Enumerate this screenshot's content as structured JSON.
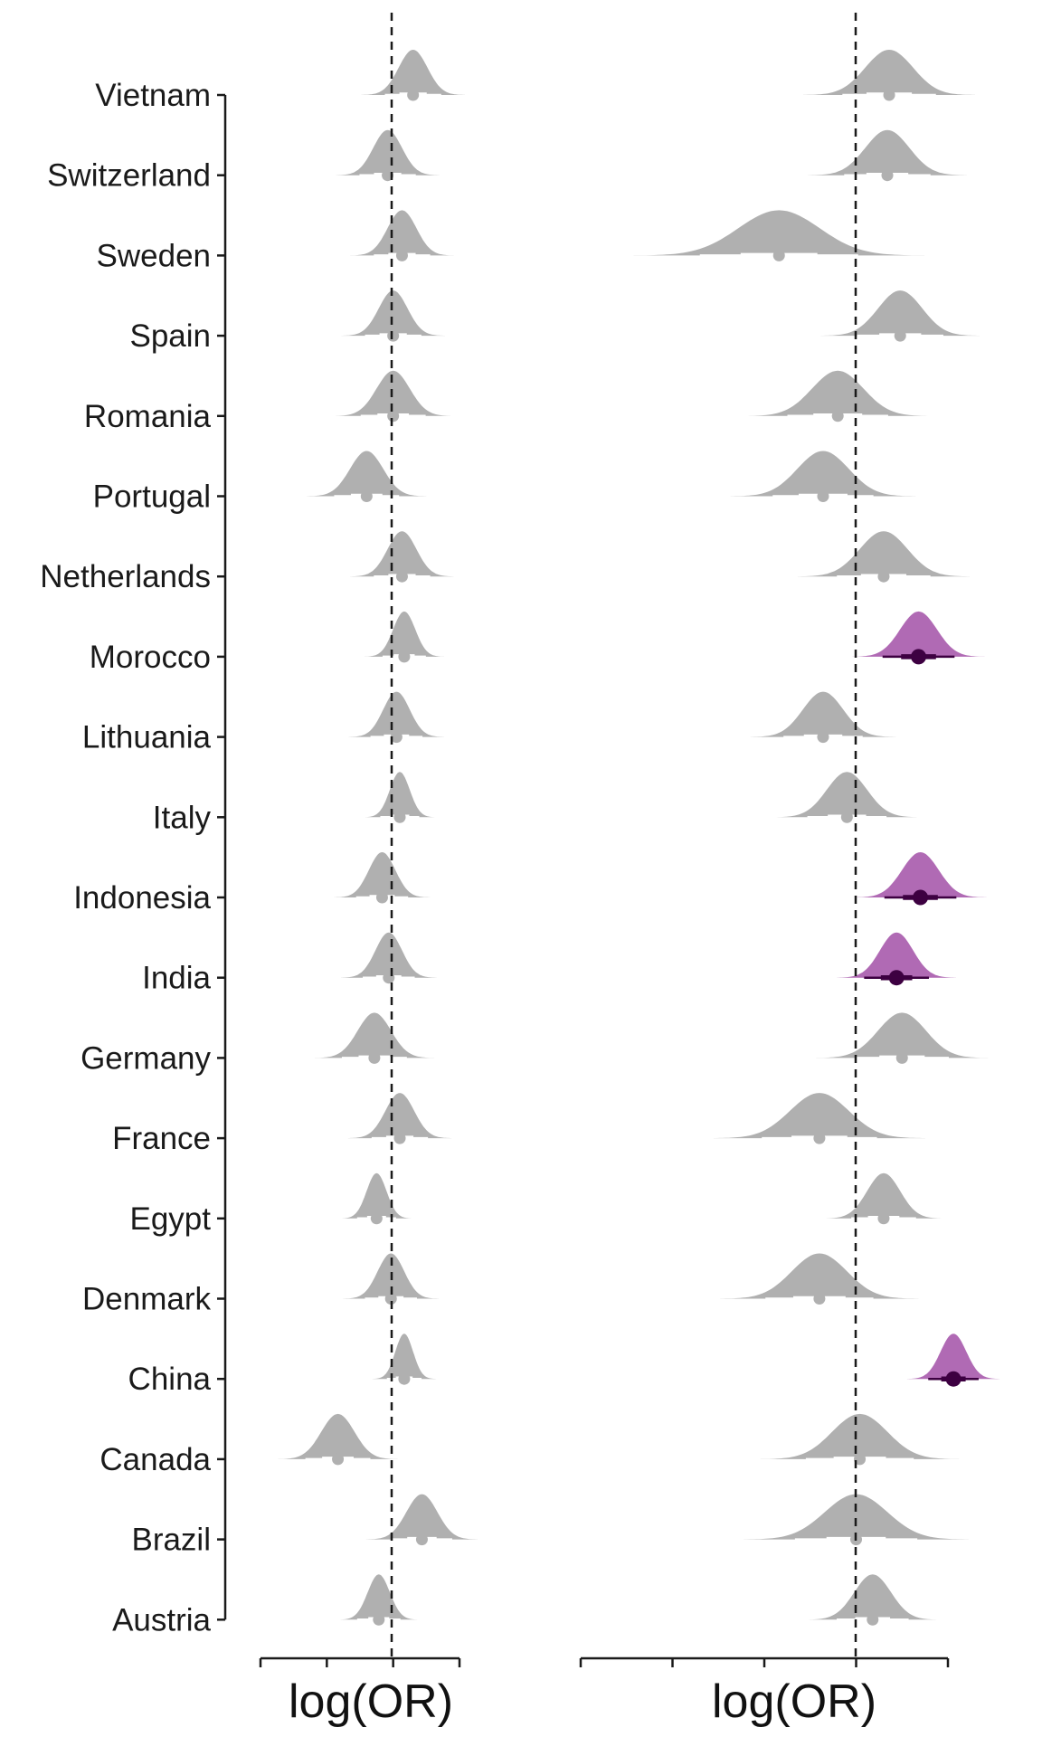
{
  "chart_data": {
    "type": "density-forest",
    "countries": [
      "Vietnam",
      "Switzerland",
      "Sweden",
      "Spain",
      "Romania",
      "Portugal",
      "Netherlands",
      "Morocco",
      "Lithuania",
      "Italy",
      "Indonesia",
      "India",
      "Germany",
      "France",
      "Egypt",
      "Denmark",
      "China",
      "Canada",
      "Brazil",
      "Austria"
    ],
    "panels": [
      {
        "name": "left",
        "xlabel": "log(OR)",
        "xlim": [
          -1.2,
          0.6
        ],
        "xticks": [
          -1.2,
          -0.6,
          0,
          0.6
        ],
        "reference_line": 0,
        "series": [
          {
            "country": "Vietnam",
            "mean": 0.18,
            "sd": 0.13,
            "highlight": false
          },
          {
            "country": "Switzerland",
            "mean": -0.05,
            "sd": 0.13,
            "highlight": false
          },
          {
            "country": "Sweden",
            "mean": 0.08,
            "sd": 0.13,
            "highlight": false
          },
          {
            "country": "Spain",
            "mean": 0.0,
            "sd": 0.13,
            "highlight": false
          },
          {
            "country": "Romania",
            "mean": 0.0,
            "sd": 0.15,
            "highlight": false
          },
          {
            "country": "Portugal",
            "mean": -0.24,
            "sd": 0.15,
            "highlight": false
          },
          {
            "country": "Netherlands",
            "mean": 0.08,
            "sd": 0.13,
            "highlight": false
          },
          {
            "country": "Morocco",
            "mean": 0.1,
            "sd": 0.1,
            "highlight": false
          },
          {
            "country": "Lithuania",
            "mean": 0.03,
            "sd": 0.12,
            "highlight": false
          },
          {
            "country": "Italy",
            "mean": 0.06,
            "sd": 0.09,
            "highlight": false
          },
          {
            "country": "Indonesia",
            "mean": -0.1,
            "sd": 0.12,
            "highlight": false
          },
          {
            "country": "India",
            "mean": -0.04,
            "sd": 0.12,
            "highlight": false
          },
          {
            "country": "Germany",
            "mean": -0.17,
            "sd": 0.15,
            "highlight": false
          },
          {
            "country": "France",
            "mean": 0.06,
            "sd": 0.13,
            "highlight": false
          },
          {
            "country": "Egypt",
            "mean": -0.15,
            "sd": 0.09,
            "highlight": false
          },
          {
            "country": "Denmark",
            "mean": -0.02,
            "sd": 0.12,
            "highlight": false
          },
          {
            "country": "China",
            "mean": 0.1,
            "sd": 0.08,
            "highlight": false
          },
          {
            "country": "Canada",
            "mean": -0.5,
            "sd": 0.15,
            "highlight": false
          },
          {
            "country": "Brazil",
            "mean": 0.26,
            "sd": 0.14,
            "highlight": false
          },
          {
            "country": "Austria",
            "mean": -0.13,
            "sd": 0.1,
            "highlight": false
          }
        ]
      },
      {
        "name": "right",
        "xlabel": "log(OR)",
        "xlim": [
          -1.5,
          0.5
        ],
        "xticks": [
          -1.5,
          -1.0,
          -0.5,
          0.0,
          0.5
        ],
        "reference_line": 0,
        "series": [
          {
            "country": "Vietnam",
            "mean": 0.18,
            "sd": 0.13,
            "highlight": false
          },
          {
            "country": "Switzerland",
            "mean": 0.17,
            "sd": 0.12,
            "highlight": false
          },
          {
            "country": "Sweden",
            "mean": -0.42,
            "sd": 0.22,
            "highlight": false
          },
          {
            "country": "Spain",
            "mean": 0.24,
            "sd": 0.12,
            "highlight": false
          },
          {
            "country": "Romania",
            "mean": -0.1,
            "sd": 0.14,
            "highlight": false
          },
          {
            "country": "Portugal",
            "mean": -0.18,
            "sd": 0.14,
            "highlight": false
          },
          {
            "country": "Netherlands",
            "mean": 0.15,
            "sd": 0.13,
            "highlight": false
          },
          {
            "country": "Morocco",
            "mean": 0.34,
            "sd": 0.1,
            "highlight": true
          },
          {
            "country": "Lithuania",
            "mean": -0.18,
            "sd": 0.11,
            "highlight": false
          },
          {
            "country": "Italy",
            "mean": -0.05,
            "sd": 0.11,
            "highlight": false
          },
          {
            "country": "Indonesia",
            "mean": 0.35,
            "sd": 0.1,
            "highlight": true
          },
          {
            "country": "India",
            "mean": 0.22,
            "sd": 0.09,
            "highlight": true
          },
          {
            "country": "Germany",
            "mean": 0.25,
            "sd": 0.13,
            "highlight": false
          },
          {
            "country": "France",
            "mean": -0.2,
            "sd": 0.16,
            "highlight": false
          },
          {
            "country": "Egypt",
            "mean": 0.15,
            "sd": 0.09,
            "highlight": false
          },
          {
            "country": "Denmark",
            "mean": -0.2,
            "sd": 0.15,
            "highlight": false
          },
          {
            "country": "China",
            "mean": 0.53,
            "sd": 0.07,
            "highlight": true
          },
          {
            "country": "Canada",
            "mean": 0.02,
            "sd": 0.15,
            "highlight": false
          },
          {
            "country": "Brazil",
            "mean": 0.0,
            "sd": 0.17,
            "highlight": false
          },
          {
            "country": "Austria",
            "mean": 0.09,
            "sd": 0.1,
            "highlight": false
          }
        ]
      }
    ]
  },
  "colors": {
    "default_fill": "#b0b0b0",
    "default_interval": "#ffffff",
    "highlight_fill": "#b06ab4",
    "highlight_interval": "#3d0041",
    "axis": "#1a1a1a"
  }
}
